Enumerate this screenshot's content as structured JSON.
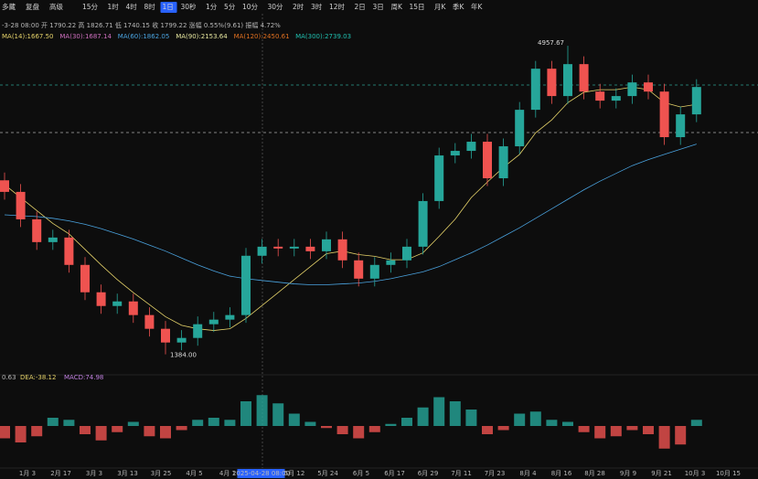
{
  "toolbar": {
    "left": [
      "多藏",
      "复盘",
      "高级"
    ],
    "intervals": [
      "15分",
      "1时",
      "4时",
      "8时",
      "1日",
      "30秒",
      "1分",
      "5分",
      "10分",
      "30分",
      "2时",
      "3时",
      "12时",
      "2日",
      "3日",
      "周K",
      "15日",
      "月K",
      "季K",
      "年K"
    ],
    "active": "1日"
  },
  "info_line": "-3-28 08:00  开 1790.22  高 1826.71  低 1740.15  收 1799.22  涨幅 0.55%(9.61)  振幅 4.72%",
  "ma_labels": [
    "MA(14):1667.50",
    "MA(30):1687.14",
    "MA(60):1862.05",
    "MA(90):2153.64",
    "MA(120):2450.61",
    "MA(300):2739.03"
  ],
  "macd_labels": [
    "0.63",
    "DEA:-38.12",
    "MACD:74.98"
  ],
  "x_labels": [
    "1月 3",
    "2月 17",
    "3月 3",
    "3月 13",
    "3月 25",
    "4月 5",
    "4月 1",
    "2025-04-28 08:00",
    "5月 12",
    "5月 24",
    "6月 5",
    "6月 17",
    "6月 29",
    "7月 11",
    "7月 23",
    "8月 4",
    "8月 16",
    "8月 28",
    "9月 9",
    "9月 21",
    "10月 3",
    "10月 15"
  ],
  "chart_data": {
    "type": "candlestick",
    "high_label": "4957.67",
    "low_label": "1384.00",
    "ylim": [
      1200,
      5330
    ],
    "up_color": "#26a69a",
    "down_color": "#ef5350",
    "open": [
      3400,
      3266,
      2948,
      2684,
      2737,
      2420,
      2103,
      1944,
      1997,
      1839,
      1680,
      1521,
      1574,
      1733,
      1786,
      1839,
      2526,
      2631,
      2610,
      2631,
      2578,
      2716,
      2473,
      2261,
      2420,
      2473,
      2631,
      3160,
      3688,
      3741,
      3847,
      3424,
      3794,
      4217,
      4693,
      4376,
      4746,
      4428,
      4323,
      4376,
      4534,
      4428,
      3900,
      4164
    ],
    "high": [
      3490,
      3356,
      3038,
      2827,
      2827,
      2510,
      2193,
      2087,
      2087,
      1929,
      1770,
      1664,
      1823,
      1876,
      1929,
      2616,
      2721,
      2721,
      2721,
      2721,
      2806,
      2806,
      2563,
      2510,
      2563,
      2721,
      3250,
      3778,
      3831,
      3937,
      3937,
      3884,
      4307,
      4783,
      4783,
      4957.67,
      4836,
      4518,
      4466,
      4624,
      4624,
      4518,
      4254,
      4571
    ],
    "low": [
      3176,
      2858,
      2594,
      2594,
      2330,
      2013,
      1854,
      1854,
      1749,
      1590,
      1384,
      1431,
      1484,
      1643,
      1696,
      1749,
      2436,
      2520,
      2520,
      2488,
      2488,
      2383,
      2171,
      2171,
      2330,
      2383,
      2541,
      3070,
      3598,
      3651,
      3334,
      3334,
      3704,
      4127,
      4286,
      4286,
      4338,
      4233,
      4233,
      4286,
      4338,
      3810,
      3810,
      4074
    ],
    "close": [
      3266,
      2948,
      2684,
      2737,
      2420,
      2103,
      1944,
      1997,
      1839,
      1680,
      1521,
      1574,
      1733,
      1786,
      1839,
      2526,
      2631,
      2610,
      2631,
      2578,
      2716,
      2473,
      2261,
      2420,
      2473,
      2631,
      3160,
      3688,
      3741,
      3847,
      3424,
      3794,
      4217,
      4693,
      4376,
      4746,
      4428,
      4323,
      4376,
      4534,
      4428,
      3900,
      4164,
      4481
    ],
    "series": [
      {
        "color": "#e6d36a",
        "values": [
          3350,
          3200,
          3050,
          2900,
          2780,
          2600,
          2420,
          2250,
          2100,
          1960,
          1820,
          1720,
          1680,
          1660,
          1680,
          1800,
          1950,
          2100,
          2250,
          2400,
          2550,
          2580,
          2540,
          2520,
          2480,
          2480,
          2560,
          2750,
          2950,
          3200,
          3380,
          3550,
          3700,
          3950,
          4100,
          4300,
          4420,
          4450,
          4450,
          4480,
          4450,
          4300,
          4250,
          4280
        ]
      },
      {
        "color": "#4aa3df",
        "values": [
          3000,
          2990,
          2980,
          2960,
          2930,
          2890,
          2840,
          2780,
          2720,
          2650,
          2580,
          2500,
          2420,
          2350,
          2290,
          2260,
          2240,
          2220,
          2200,
          2190,
          2190,
          2200,
          2210,
          2230,
          2260,
          2300,
          2340,
          2400,
          2480,
          2560,
          2650,
          2750,
          2850,
          2960,
          3070,
          3180,
          3290,
          3390,
          3480,
          3570,
          3640,
          3700,
          3760,
          3820
        ]
      }
    ],
    "macd": {
      "ylim": [
        -200,
        200
      ],
      "values": [
        -60,
        -80,
        -50,
        40,
        30,
        -40,
        -70,
        -30,
        20,
        -50,
        -60,
        -20,
        30,
        40,
        30,
        120,
        150,
        110,
        60,
        20,
        -10,
        -40,
        -60,
        -30,
        10,
        40,
        90,
        140,
        120,
        80,
        -40,
        -20,
        60,
        70,
        30,
        20,
        -30,
        -60,
        -50,
        -20,
        -40,
        -110,
        -90,
        30
      ]
    }
  }
}
